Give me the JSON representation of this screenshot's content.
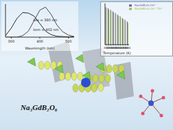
{
  "label": "Na₃GdB₂O₆",
  "chart_data": [
    {
      "type": "line",
      "x_label": "Wavelength (nm)",
      "x": [
        280,
        300,
        320,
        340,
        360,
        380,
        400,
        420,
        440,
        460,
        480,
        500,
        520
      ],
      "series": [
        {
          "color": "#2a2a2a",
          "values": [
            0.05,
            0.3,
            0.62,
            0.82,
            0.8,
            0.7,
            0.45,
            0.2,
            0.08,
            0.03,
            0.02,
            0.01,
            0.01
          ]
        },
        {
          "color": "#4a4a4a",
          "values": [
            0,
            0,
            0,
            0.05,
            0.2,
            0.55,
            0.9,
            1.0,
            0.75,
            0.4,
            0.18,
            0.07,
            0.02
          ]
        }
      ],
      "xlim": [
        280,
        520
      ],
      "xticks": [
        300,
        400,
        500
      ],
      "ylim": [
        0,
        1.1
      ],
      "yticks": [],
      "tick_labels": "x",
      "annotations": [
        "λex = 380 nm",
        "λem = 402 nm"
      ]
    },
    {
      "type": "bar",
      "x_label": "Temperature (K)",
      "categories": [
        "300",
        "320",
        "340",
        "360",
        "380",
        "400",
        "420",
        "440",
        "460",
        "480"
      ],
      "series": [
        {
          "name": "Na₃GdB₂O₆:Ce³⁺",
          "color": "#7b4fa8",
          "values": [
            100,
            97,
            93,
            89,
            85,
            80,
            76,
            71,
            67,
            62
          ]
        },
        {
          "name": "Na₃GdB₂O₆:Ce³⁺,Tb³⁺",
          "color": "#8cc63f",
          "values": [
            98,
            94,
            90,
            86,
            81,
            77,
            72,
            68,
            63,
            58
          ]
        }
      ],
      "ylim": [
        0,
        110
      ],
      "yticks": [],
      "tick_labels": "x",
      "legend": "top"
    }
  ]
}
